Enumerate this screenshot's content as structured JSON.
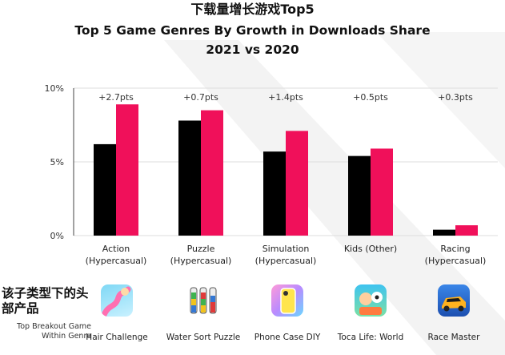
{
  "title_cn": "下载量增长游戏Top5",
  "chart_data": {
    "type": "bar",
    "title": "Top 5 Game Genres By Growth in Downloads Share",
    "subtitle": "2021 vs 2020",
    "categories": [
      [
        "Action",
        "(Hypercasual)"
      ],
      [
        "Puzzle",
        "(Hypercasual)"
      ],
      [
        "Simulation",
        "(Hypercasual)"
      ],
      [
        "Kids (Other)"
      ],
      [
        "Racing",
        "(Hypercasual)"
      ]
    ],
    "series": [
      {
        "name": "2020",
        "color": "#000000",
        "values": [
          6.2,
          7.8,
          5.7,
          5.4,
          0.4
        ]
      },
      {
        "name": "2021",
        "color": "#f0105a",
        "values": [
          8.9,
          8.5,
          7.1,
          5.9,
          0.7
        ]
      }
    ],
    "growth_labels": [
      "+2.7pts",
      "+0.7pts",
      "+1.4pts",
      "+0.5pts",
      "+0.3pts"
    ],
    "ylim": [
      0,
      10
    ],
    "yticks": [
      0,
      5,
      10
    ],
    "ytick_labels": [
      "0%",
      "5%",
      "10%"
    ],
    "xlabel": "",
    "ylabel": ""
  },
  "breakout": {
    "label_cn": "该子类型下的头部产品",
    "label_en": "Top Breakout Game Within Genre",
    "games": [
      {
        "name": "Hair Challenge",
        "icon": "hair-challenge-icon"
      },
      {
        "name": "Water Sort Puzzle",
        "icon": "water-sort-puzzle-icon"
      },
      {
        "name": "Phone Case DIY",
        "icon": "phone-case-diy-icon"
      },
      {
        "name": "Toca Life: World",
        "icon": "toca-life-world-icon"
      },
      {
        "name": "Race Master",
        "icon": "race-master-icon"
      }
    ]
  }
}
